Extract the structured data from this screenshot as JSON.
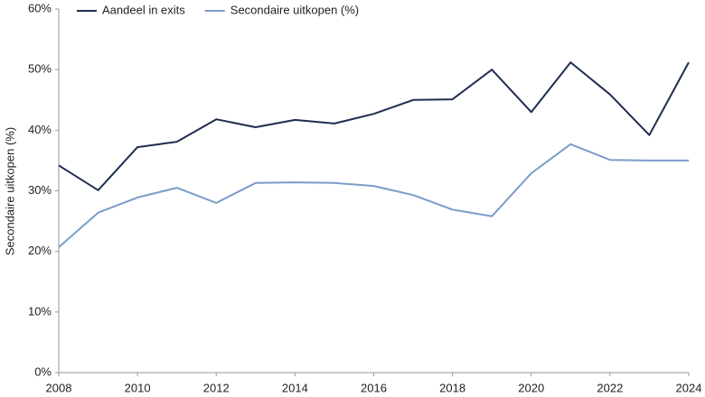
{
  "chart_data": {
    "type": "line",
    "y_label": "Secondaire uitkopen (%)",
    "x": [
      2008,
      2009,
      2010,
      2011,
      2012,
      2013,
      2014,
      2015,
      2016,
      2017,
      2018,
      2019,
      2020,
      2021,
      2022,
      2023,
      2024
    ],
    "series": [
      {
        "name": "Aandeel in exits",
        "color": "#1f2d4f",
        "values": [
          34.2,
          30.1,
          37.2,
          38.1,
          41.8,
          40.5,
          41.7,
          41.1,
          42.7,
          45.0,
          45.1,
          50.0,
          43.0,
          51.2,
          45.9,
          39.2,
          51.2
        ]
      },
      {
        "name": "Secondaire uitkopen (%)",
        "color": "#7a9cc8",
        "values": [
          20.7,
          26.4,
          28.9,
          30.5,
          28.0,
          31.3,
          31.4,
          31.3,
          30.8,
          29.3,
          26.9,
          25.8,
          32.9,
          37.7,
          35.1,
          35.0,
          35.0
        ]
      }
    ],
    "xlim": [
      2008,
      2024
    ],
    "xticks": [
      2008,
      2010,
      2012,
      2014,
      2016,
      2018,
      2020,
      2022,
      2024
    ],
    "ylim": [
      0,
      60
    ],
    "yticks": [
      {
        "value": 0,
        "label": "0%"
      },
      {
        "value": 10,
        "label": "10%"
      },
      {
        "value": 20,
        "label": "20%"
      },
      {
        "value": 30,
        "label": "30%"
      },
      {
        "value": 40,
        "label": "40%"
      },
      {
        "value": 50,
        "label": "50%"
      },
      {
        "value": 60,
        "label": "60%"
      }
    ]
  }
}
